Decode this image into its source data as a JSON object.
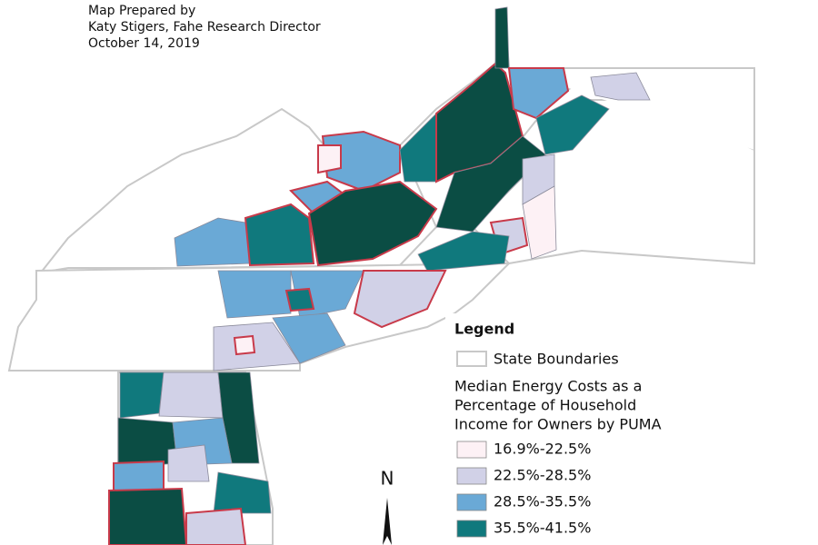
{
  "credits": [
    "Map Prepared by",
    "Katy Stigers, Fahe Research Director",
    "October 14, 2019"
  ],
  "legend": {
    "title": "Legend",
    "boundary": "State Boundaries",
    "subtitle": [
      "Median Energy Costs as a",
      "Percentage of Household",
      "Income for Owners by PUMA"
    ],
    "classes": [
      {
        "label": "16.9%-22.5%",
        "color": "#fdf1f5"
      },
      {
        "label": "22.5%-28.5%",
        "color": "#d1d1e7"
      },
      {
        "label": "28.5%-35.5%",
        "color": "#6aa9d6"
      },
      {
        "label": "35.5%-41.5%",
        "color": "#10797d"
      }
    ]
  },
  "north": "N"
}
